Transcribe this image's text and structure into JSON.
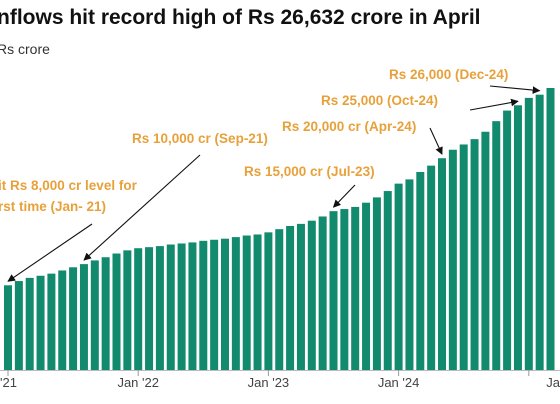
{
  "chart_data": {
    "type": "bar",
    "title": "nflows hit record high of Rs 26,632 crore in April",
    "unit_label": "Rs crore",
    "bar_color": "#128a6e",
    "annotation_color": "#e8a13a",
    "x_tick_labels": [
      {
        "label": "'21",
        "index": 0
      },
      {
        "label": "Jan '22",
        "index": 12
      },
      {
        "label": "Jan '23",
        "index": 24
      },
      {
        "label": "Jan '24",
        "index": 36
      },
      {
        "label": "Ja",
        "index": 48
      }
    ],
    "values": [
      8000,
      8400,
      8700,
      8900,
      9100,
      9400,
      9700,
      10000,
      10350,
      10650,
      11000,
      11300,
      11500,
      11600,
      11700,
      11850,
      11950,
      12050,
      12200,
      12300,
      12400,
      12550,
      12700,
      12800,
      13000,
      13300,
      13600,
      13800,
      14100,
      14500,
      15000,
      15200,
      15400,
      15800,
      16300,
      16900,
      17600,
      18000,
      18700,
      19300,
      20000,
      20800,
      21300,
      21800,
      22500,
      23500,
      24500,
      25000,
      25700,
      26000,
      26632
    ],
    "annotations": [
      {
        "lines": [
          "it Rs 8,000 cr level for",
          "rst time (Jan- 21)"
        ],
        "target_index": 0
      },
      {
        "lines": [
          "Rs 10,000 cr (Sep-21)"
        ],
        "target_index": 7
      },
      {
        "lines": [
          "Rs 15,000 cr (Jul-23)"
        ],
        "target_index": 30
      },
      {
        "lines": [
          "Rs 20,000 cr (Apr-24)"
        ],
        "target_index": 40
      },
      {
        "lines": [
          "Rs 25,000 (Oct-24)"
        ],
        "target_index": 47
      },
      {
        "lines": [
          "Rs 26,000 (Dec-24)"
        ],
        "target_index": 49
      }
    ]
  }
}
